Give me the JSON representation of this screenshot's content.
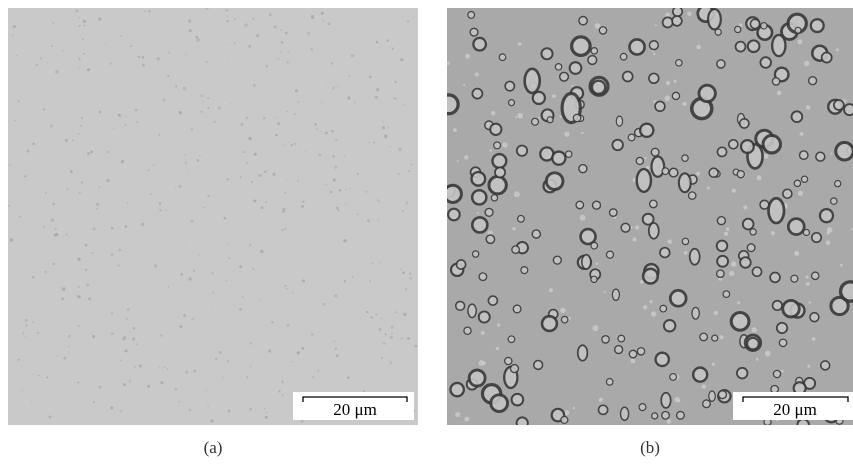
{
  "panels": [
    {
      "scale_bar": "20 μm",
      "caption": "(a)"
    },
    {
      "scale_bar": "20 μm",
      "caption": "(b)"
    }
  ]
}
